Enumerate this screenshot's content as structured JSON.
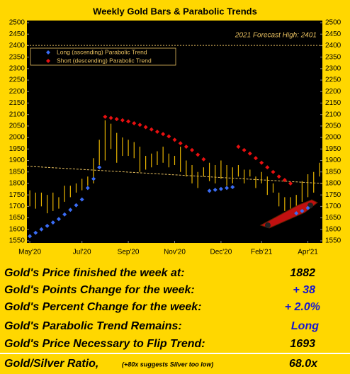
{
  "chart_data": {
    "type": "range",
    "title": "Weekly Gold Bars & Parabolic Trends",
    "categories": [
      "May'20",
      null,
      null,
      null,
      null,
      null,
      null,
      null,
      null,
      "Jul'20",
      null,
      null,
      null,
      null,
      null,
      null,
      null,
      "Sep'20",
      null,
      null,
      null,
      null,
      null,
      null,
      null,
      "Nov'20",
      null,
      null,
      null,
      null,
      null,
      null,
      null,
      "Dec'20",
      null,
      null,
      null,
      null,
      null,
      null,
      "Feb'21",
      null,
      null,
      null,
      null,
      null,
      null,
      null,
      "Apr'21",
      null,
      null
    ],
    "high": [
      1770,
      1760,
      1760,
      1750,
      1760,
      1740,
      1790,
      1790,
      1800,
      1820,
      1830,
      1910,
      1990,
      2075,
      2060,
      2020,
      2000,
      1990,
      1980,
      1960,
      1920,
      1930,
      1940,
      1960,
      1930,
      1920,
      1960,
      1900,
      1880,
      1850,
      1870,
      1890,
      1880,
      1900,
      1880,
      1870,
      1880,
      1860,
      1860,
      1830,
      1850,
      1830,
      1800,
      1760,
      1740,
      1740,
      1750,
      1810,
      1840,
      1850,
      1890
    ],
    "low": [
      1700,
      1690,
      1700,
      1670,
      1680,
      1690,
      1720,
      1740,
      1760,
      1770,
      1790,
      1800,
      1880,
      1900,
      1950,
      1890,
      1920,
      1920,
      1910,
      1850,
      1860,
      1870,
      1880,
      1890,
      1870,
      1880,
      1850,
      1830,
      1800,
      1780,
      1830,
      1810,
      1800,
      1820,
      1790,
      1800,
      1830,
      1800,
      1830,
      1780,
      1800,
      1750,
      1760,
      1700,
      1680,
      1690,
      1680,
      1720,
      1740,
      1760,
      1830
    ],
    "bar_color": "#e8b400",
    "series": [
      {
        "name": "Long (ascending) Parabolic Trend",
        "color": "#3a6cf4",
        "values": [
          1570,
          1585,
          1600,
          1615,
          1630,
          1645,
          1665,
          1685,
          1705,
          1730,
          1780,
          1820,
          1870,
          null,
          null,
          null,
          null,
          null,
          null,
          null,
          null,
          null,
          null,
          null,
          null,
          null,
          null,
          null,
          null,
          null,
          null,
          1768,
          1772,
          1776,
          1780,
          1784,
          null,
          null,
          null,
          null,
          null,
          null,
          null,
          null,
          null,
          null,
          1670,
          1680,
          1693,
          null,
          null
        ]
      },
      {
        "name": "Short (descending) Parabolic Trend",
        "color": "#e81010",
        "values": [
          null,
          null,
          null,
          null,
          null,
          null,
          null,
          null,
          null,
          null,
          null,
          null,
          null,
          2090,
          2085,
          2080,
          2075,
          2070,
          2062,
          2055,
          2045,
          2035,
          2025,
          2015,
          2005,
          1990,
          1975,
          1960,
          1945,
          1925,
          1905,
          null,
          null,
          null,
          null,
          null,
          1960,
          1945,
          1930,
          1910,
          1890,
          1870,
          1850,
          1830,
          1815,
          1800,
          null,
          null,
          null,
          null,
          null
        ]
      }
    ],
    "forecast": {
      "label": "2021 Forecast High: 2401",
      "value": 2401
    },
    "trend_line": {
      "values": [
        1875,
        1800
      ],
      "color": "#e8c060"
    },
    "ylim": [
      1550,
      2500
    ],
    "yticks": [
      1550,
      1600,
      1650,
      1700,
      1750,
      1800,
      1850,
      1900,
      1950,
      2000,
      2050,
      2100,
      2150,
      2200,
      2250,
      2300,
      2350,
      2400,
      2450,
      2500
    ],
    "legend": "upper left"
  },
  "table": {
    "rows": [
      {
        "label": "Gold's Price finished the week at:",
        "value": "1882"
      },
      {
        "label": "Gold's Points Change for the week:",
        "value": "+ 38"
      },
      {
        "label": "Gold's Percent Change for the week:",
        "value": "+ 2.0%"
      },
      {
        "label": "Gold's Parabolic Trend Remains:",
        "value": "Long"
      },
      {
        "label": "Gold's Price Necessary to Flip Trend:",
        "value": "1693"
      },
      {
        "label": "Gold/Silver Ratio,",
        "note": "(+80x suggests Silver too low)",
        "value": "68.0x"
      }
    ]
  }
}
